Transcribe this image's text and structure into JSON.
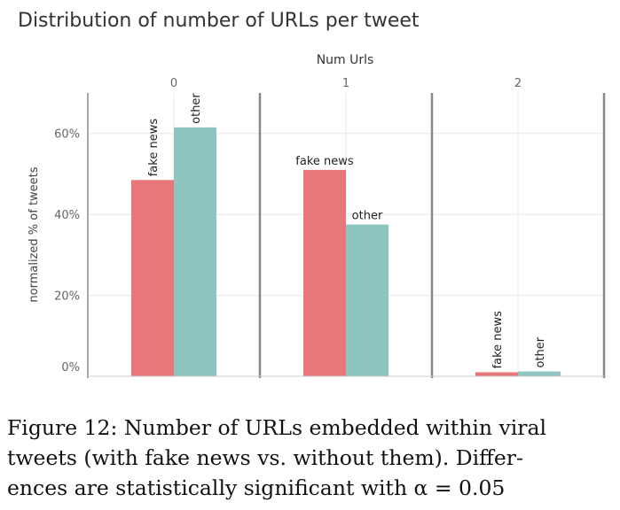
{
  "caption": {
    "line1": "Figure 12: Number of URLs embedded within viral",
    "line2": "tweets (with fake news vs. without them). Differ-",
    "line3": "ences are statistically significant with α = 0.05"
  },
  "chart_data": {
    "type": "bar",
    "title": "Distribution of number of URLs per tweet",
    "facet_title": "Num Urls",
    "ylabel": "normalized % of tweets",
    "ylim": [
      0,
      70
    ],
    "yticks": [
      0,
      20,
      40,
      60
    ],
    "ytick_labels": [
      "0%",
      "20%",
      "40%",
      "60%"
    ],
    "grid": true,
    "categories": [
      "0",
      "1",
      "2"
    ],
    "series": [
      {
        "name": "fake news",
        "color": "#e8777a",
        "values": [
          48.5,
          51,
          1
        ]
      },
      {
        "name": "other",
        "color": "#8fc5c0",
        "values": [
          61.5,
          37.5,
          1.2
        ]
      }
    ],
    "bar_label_orientation": [
      [
        "vertical",
        "vertical"
      ],
      [
        "horizontal",
        "horizontal"
      ],
      [
        "vertical",
        "vertical"
      ]
    ]
  }
}
